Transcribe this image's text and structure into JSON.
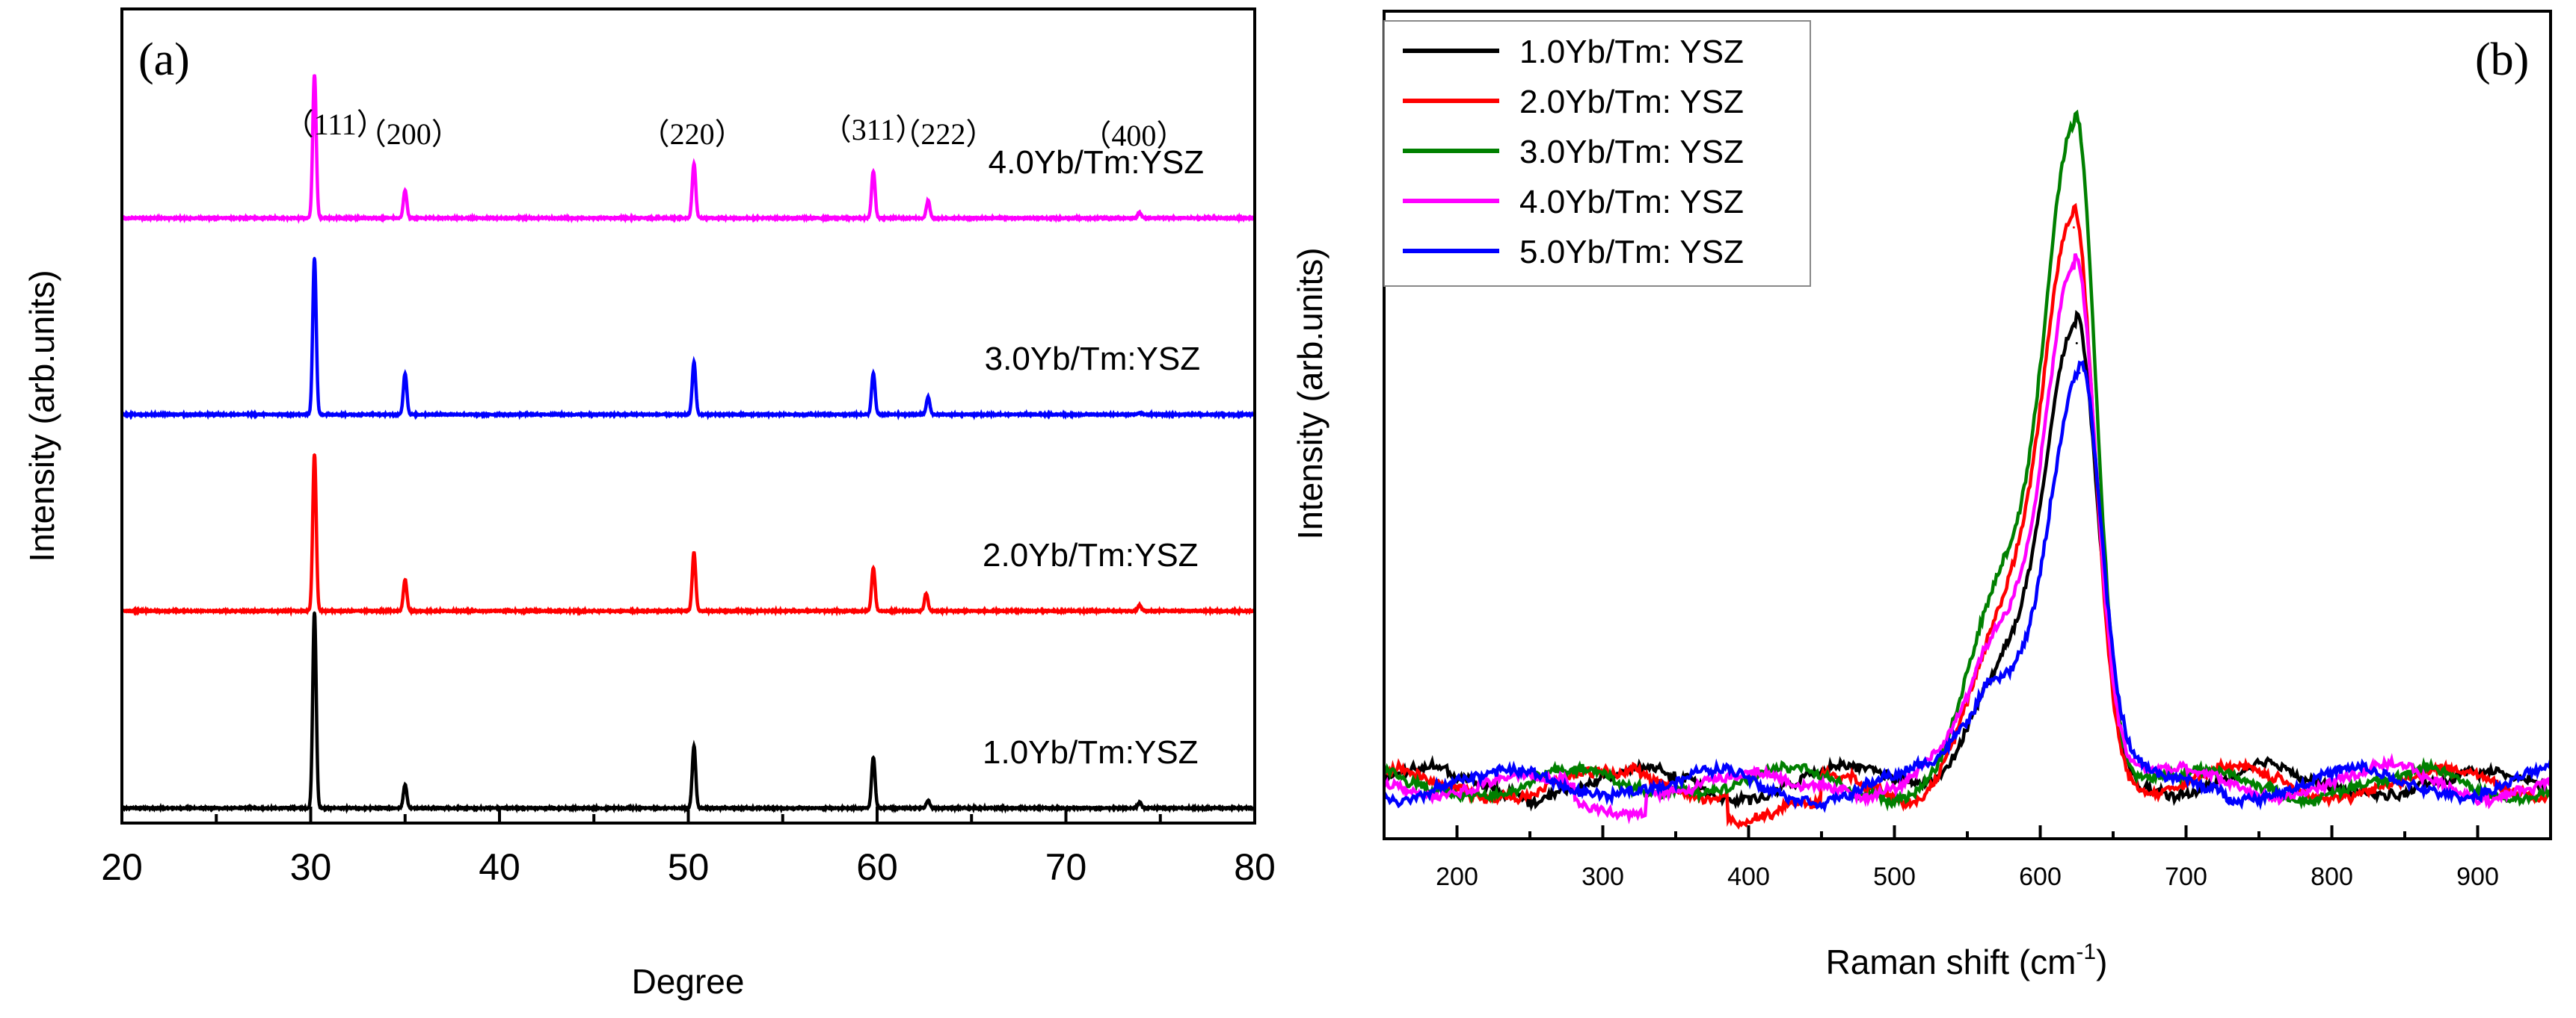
{
  "chart_data": [
    {
      "panel_label": "(a)",
      "type": "line",
      "title": "",
      "xlabel": "Degree",
      "ylabel": "Intensity (arb.units)",
      "xlim": [
        20,
        80
      ],
      "x_ticks": [
        20,
        30,
        40,
        50,
        60,
        70,
        80
      ],
      "y_ticks": [],
      "grid": false,
      "legend": "none",
      "peak_annotations": [
        {
          "label": "（111）",
          "x": 31.3
        },
        {
          "label": "（200）",
          "x": 35.2
        },
        {
          "label": "（220）",
          "x": 50.2
        },
        {
          "label": "（311）",
          "x": 59.8
        },
        {
          "label": "（222）",
          "x": 63.5
        },
        {
          "label": "（400）",
          "x": 73.6
        }
      ],
      "series": [
        {
          "name": "1.0Yb/Tm:YSZ",
          "color": "#000000",
          "offset": 0,
          "label_x": 71.3,
          "peaks": [
            {
              "x": 30.2,
              "h": 1.0
            },
            {
              "x": 35.0,
              "h": 0.12
            },
            {
              "x": 50.3,
              "h": 0.32
            },
            {
              "x": 59.8,
              "h": 0.26
            },
            {
              "x": 62.7,
              "h": 0.04
            },
            {
              "x": 73.9,
              "h": 0.03
            }
          ]
        },
        {
          "name": "2.0Yb/Tm:YSZ",
          "color": "#ff0000",
          "offset": 1,
          "label_x": 71.3,
          "peaks": [
            {
              "x": 30.2,
              "h": 0.8
            },
            {
              "x": 35.0,
              "h": 0.16
            },
            {
              "x": 50.3,
              "h": 0.3
            },
            {
              "x": 59.8,
              "h": 0.22
            },
            {
              "x": 62.6,
              "h": 0.09
            },
            {
              "x": 73.9,
              "h": 0.03
            }
          ]
        },
        {
          "name": "3.0Yb/Tm:YSZ",
          "color": "#0000ff",
          "offset": 2,
          "label_x": 71.4,
          "peaks": [
            {
              "x": 30.2,
              "h": 0.8
            },
            {
              "x": 35.0,
              "h": 0.21
            },
            {
              "x": 50.3,
              "h": 0.27
            },
            {
              "x": 59.8,
              "h": 0.21
            },
            {
              "x": 62.7,
              "h": 0.09
            },
            {
              "x": 73.9,
              "h": 0.01
            }
          ]
        },
        {
          "name": "4.0Yb/Tm:YSZ",
          "color": "#ff00ff",
          "offset": 3,
          "label_x": 71.6,
          "peaks": [
            {
              "x": 30.2,
              "h": 0.73
            },
            {
              "x": 35.0,
              "h": 0.14
            },
            {
              "x": 50.3,
              "h": 0.28
            },
            {
              "x": 59.8,
              "h": 0.24
            },
            {
              "x": 62.7,
              "h": 0.09
            },
            {
              "x": 73.9,
              "h": 0.03
            }
          ]
        }
      ]
    },
    {
      "panel_label": "(b)",
      "type": "line",
      "title": "",
      "xlabel": "Raman shift (cm",
      "xlabel_superscript": "-1",
      "xlabel_suffix": ")",
      "ylabel": "Intensity (arb.units)",
      "xlim": [
        150,
        950
      ],
      "ylim": [
        0,
        1.05
      ],
      "x_ticks": [
        200,
        300,
        400,
        500,
        600,
        700,
        800,
        900
      ],
      "y_ticks": [],
      "grid": false,
      "legend": "top-left",
      "series": [
        {
          "name": "1.0Yb/Tm: YSZ",
          "color": "#000000",
          "peak": {
            "x": 625,
            "y": 0.665
          }
        },
        {
          "name": "2.0Yb/Tm: YSZ",
          "color": "#ff0000",
          "peak": {
            "x": 623,
            "y": 0.84
          }
        },
        {
          "name": "3.0Yb/Tm: YSZ",
          "color": "#008000",
          "peak": {
            "x": 624,
            "y": 1.0
          }
        },
        {
          "name": "4.0Yb/Tm: YSZ",
          "color": "#ff00ff",
          "peak": {
            "x": 624,
            "y": 0.79
          }
        },
        {
          "name": "5.0Yb/Tm: YSZ",
          "color": "#0000ff",
          "peak": {
            "x": 627,
            "y": 0.62
          }
        }
      ]
    }
  ]
}
